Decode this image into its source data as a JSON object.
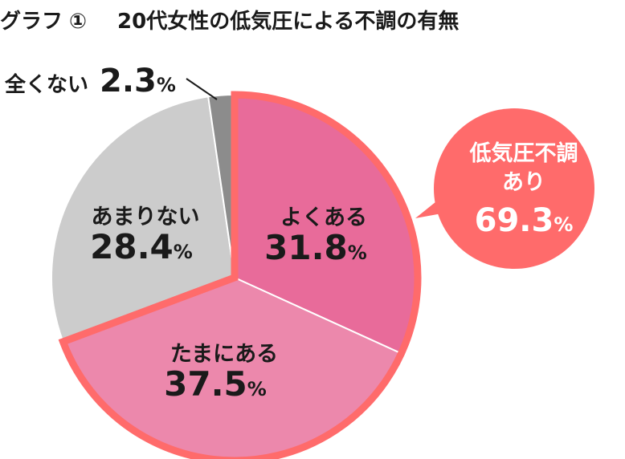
{
  "title": {
    "label": "グラフ",
    "number": "①",
    "text": "20代女性の低気圧による不調の有無"
  },
  "chart_data": {
    "type": "pie",
    "title": "20代女性の低気圧による不調の有無",
    "unit": "%",
    "slices": [
      {
        "label": "よくある",
        "value": 31.8,
        "color": "#e86b9a"
      },
      {
        "label": "たまにある",
        "value": 37.5,
        "color": "#ec88ac"
      },
      {
        "label": "あまりない",
        "value": 28.4,
        "color": "#cccccc"
      },
      {
        "label": "全くない",
        "value": 2.3,
        "color": "#8c8c8c"
      }
    ],
    "highlight": {
      "slices": [
        "よくある",
        "たまにある"
      ],
      "border_color": "#ff6b6b"
    },
    "callout": {
      "line1": "低気圧不調",
      "line2": "あり",
      "value": "69.3",
      "unit": "%",
      "color": "#ff6b6b"
    }
  }
}
